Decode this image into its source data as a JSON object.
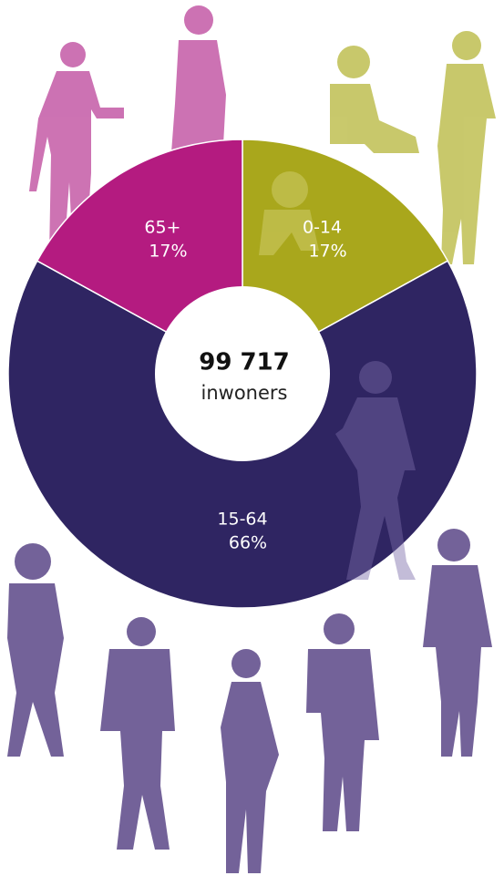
{
  "chart_data": {
    "type": "donut",
    "center_label": "99 717",
    "center_sublabel": "inwoners",
    "categories": [
      "0-14",
      "15-64",
      "65+"
    ],
    "values": [
      17,
      66,
      17
    ],
    "value_labels": [
      "17%",
      "66%",
      "17%"
    ],
    "colors": [
      "#a9a71c",
      "#2f2562",
      "#b41b80"
    ]
  }
}
